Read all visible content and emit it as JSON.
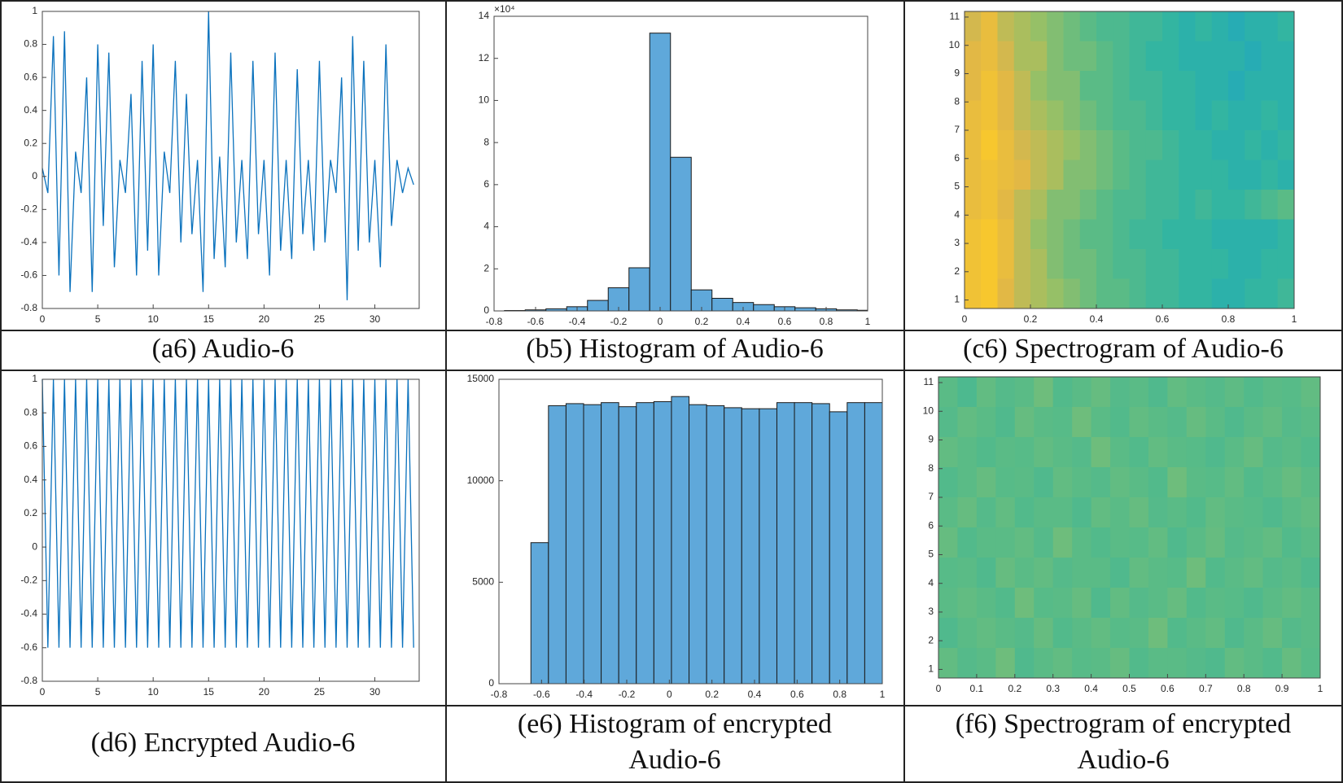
{
  "chart_data": [
    {
      "type": "line",
      "caption": "(a6) Audio-6",
      "color": "#0b72bd",
      "x": [
        0,
        0.5,
        1,
        1.5,
        2,
        2.5,
        3,
        3.5,
        4,
        4.5,
        5,
        5.5,
        6,
        6.5,
        7,
        7.5,
        8,
        8.5,
        9,
        9.5,
        10,
        10.5,
        11,
        11.5,
        12,
        12.5,
        13,
        13.5,
        14,
        14.5,
        15,
        15.5,
        16,
        16.5,
        17,
        17.5,
        18,
        18.5,
        19,
        19.5,
        20,
        20.5,
        21,
        21.5,
        22,
        22.5,
        23,
        23.5,
        24,
        24.5,
        25,
        25.5,
        26,
        26.5,
        27,
        27.5,
        28,
        28.5,
        29,
        29.5,
        30,
        30.5,
        31,
        31.5,
        32,
        32.5,
        33,
        33.5
      ],
      "values": [
        0.05,
        -0.1,
        0.85,
        -0.6,
        0.88,
        -0.7,
        0.15,
        -0.1,
        0.6,
        -0.7,
        0.8,
        -0.3,
        0.75,
        -0.55,
        0.1,
        -0.1,
        0.5,
        -0.6,
        0.7,
        -0.45,
        0.8,
        -0.6,
        0.15,
        -0.1,
        0.7,
        -0.4,
        0.5,
        -0.35,
        0.1,
        -0.7,
        1.0,
        -0.5,
        0.12,
        -0.55,
        0.75,
        -0.4,
        0.1,
        -0.5,
        0.7,
        -0.35,
        0.1,
        -0.6,
        0.75,
        -0.45,
        0.1,
        -0.5,
        0.65,
        -0.35,
        0.1,
        -0.45,
        0.7,
        -0.4,
        0.1,
        -0.1,
        0.6,
        -0.75,
        0.85,
        -0.45,
        0.7,
        -0.4,
        0.1,
        -0.55,
        0.8,
        -0.3,
        0.1,
        -0.1,
        0.05,
        -0.05
      ],
      "xlim": [
        0,
        34
      ],
      "xticks": [
        0,
        5,
        10,
        15,
        20,
        25,
        30
      ],
      "ylim": [
        -0.8,
        1
      ],
      "yticks": [
        -0.8,
        -0.6,
        -0.4,
        -0.2,
        0,
        0.2,
        0.4,
        0.6,
        0.8,
        1
      ]
    },
    {
      "type": "histogram",
      "caption": "(b5) Histogram of Audio-6",
      "color": "#5fa8da",
      "y_multiplier": "×10⁴",
      "bins": [
        -0.75,
        -0.65,
        -0.55,
        -0.45,
        -0.35,
        -0.25,
        -0.15,
        -0.05,
        0.05,
        0.15,
        0.25,
        0.35,
        0.45,
        0.55,
        0.65,
        0.75,
        0.85,
        0.95,
        1.0
      ],
      "values": [
        0.02,
        0.05,
        0.1,
        0.2,
        0.5,
        1.1,
        2.05,
        13.2,
        7.3,
        1.0,
        0.6,
        0.4,
        0.3,
        0.2,
        0.15,
        0.1,
        0.05,
        0.03
      ],
      "xlim": [
        -0.8,
        1
      ],
      "xticks": [
        -0.8,
        -0.6,
        -0.4,
        -0.2,
        0,
        0.2,
        0.4,
        0.6,
        0.8,
        1
      ],
      "ylim": [
        0,
        14
      ],
      "yticks": [
        0,
        2,
        4,
        6,
        8,
        10,
        12,
        14
      ]
    },
    {
      "type": "heatmap",
      "caption": "(c6) Spectrogram of Audio-6",
      "colormap": [
        "#2386d8",
        "#1fa4c4",
        "#2fb4a4",
        "#5abb86",
        "#9dc064",
        "#e0b648",
        "#f7c72e"
      ],
      "z": [
        [
          0.8,
          0.9,
          0.75,
          0.7,
          0.65,
          0.6,
          0.55,
          0.5,
          0.45,
          0.45,
          0.4,
          0.4,
          0.35,
          0.3,
          0.35,
          0.3,
          0.25,
          0.3,
          0.3,
          0.35
        ],
        [
          0.85,
          0.9,
          0.8,
          0.7,
          0.7,
          0.6,
          0.55,
          0.55,
          0.5,
          0.45,
          0.4,
          0.35,
          0.35,
          0.3,
          0.3,
          0.3,
          0.3,
          0.25,
          0.3,
          0.3
        ],
        [
          0.85,
          0.95,
          0.85,
          0.75,
          0.65,
          0.6,
          0.6,
          0.5,
          0.5,
          0.45,
          0.4,
          0.4,
          0.35,
          0.35,
          0.3,
          0.3,
          0.25,
          0.3,
          0.3,
          0.3
        ],
        [
          0.9,
          0.95,
          0.85,
          0.75,
          0.7,
          0.65,
          0.6,
          0.55,
          0.5,
          0.45,
          0.45,
          0.4,
          0.35,
          0.35,
          0.3,
          0.35,
          0.3,
          0.3,
          0.35,
          0.3
        ],
        [
          0.9,
          1.0,
          0.9,
          0.8,
          0.75,
          0.7,
          0.65,
          0.6,
          0.55,
          0.5,
          0.45,
          0.45,
          0.4,
          0.35,
          0.35,
          0.3,
          0.3,
          0.35,
          0.3,
          0.35
        ],
        [
          0.9,
          0.95,
          0.9,
          0.85,
          0.75,
          0.7,
          0.6,
          0.6,
          0.55,
          0.5,
          0.45,
          0.4,
          0.4,
          0.35,
          0.35,
          0.35,
          0.3,
          0.3,
          0.35,
          0.3
        ],
        [
          0.9,
          0.95,
          0.85,
          0.75,
          0.7,
          0.6,
          0.6,
          0.55,
          0.5,
          0.45,
          0.45,
          0.4,
          0.4,
          0.35,
          0.4,
          0.35,
          0.35,
          0.4,
          0.45,
          0.5
        ],
        [
          0.95,
          1.0,
          0.9,
          0.75,
          0.65,
          0.6,
          0.55,
          0.5,
          0.5,
          0.45,
          0.4,
          0.4,
          0.35,
          0.35,
          0.35,
          0.3,
          0.3,
          0.3,
          0.3,
          0.35
        ],
        [
          0.95,
          1.0,
          0.9,
          0.75,
          0.7,
          0.6,
          0.55,
          0.55,
          0.5,
          0.45,
          0.45,
          0.4,
          0.4,
          0.35,
          0.35,
          0.35,
          0.3,
          0.3,
          0.35,
          0.35
        ],
        [
          0.95,
          1.0,
          0.85,
          0.75,
          0.7,
          0.65,
          0.6,
          0.55,
          0.5,
          0.5,
          0.45,
          0.4,
          0.4,
          0.35,
          0.35,
          0.3,
          0.3,
          0.35,
          0.35,
          0.4
        ]
      ],
      "xlim": [
        0,
        1
      ],
      "xticks": [
        0,
        0.2,
        0.4,
        0.6,
        0.8,
        1
      ],
      "ylim": [
        0.7,
        11.2
      ],
      "yticks": [
        1,
        2,
        3,
        4,
        5,
        6,
        7,
        8,
        9,
        10,
        11
      ]
    },
    {
      "type": "line",
      "caption": "(d6) Encrypted Audio-6",
      "color": "#0b72bd",
      "x": [
        0,
        0.5,
        1,
        1.5,
        2,
        2.5,
        3,
        3.5,
        4,
        4.5,
        5,
        5.5,
        6,
        6.5,
        7,
        7.5,
        8,
        8.5,
        9,
        9.5,
        10,
        10.5,
        11,
        11.5,
        12,
        12.5,
        13,
        13.5,
        14,
        14.5,
        15,
        15.5,
        16,
        16.5,
        17,
        17.5,
        18,
        18.5,
        19,
        19.5,
        20,
        20.5,
        21,
        21.5,
        22,
        22.5,
        23,
        23.5,
        24,
        24.5,
        25,
        25.5,
        26,
        26.5,
        27,
        27.5,
        28,
        28.5,
        29,
        29.5,
        30,
        30.5,
        31,
        31.5,
        32,
        32.5,
        33,
        33.5
      ],
      "values": [
        1,
        -0.6,
        1,
        -0.6,
        1,
        -0.6,
        1,
        -0.6,
        1,
        -0.6,
        1,
        -0.6,
        1,
        -0.6,
        1,
        -0.6,
        1,
        -0.6,
        1,
        -0.6,
        1,
        -0.6,
        1,
        -0.6,
        1,
        -0.6,
        1,
        -0.6,
        1,
        -0.6,
        1,
        -0.6,
        1,
        -0.6,
        1,
        -0.6,
        1,
        -0.6,
        1,
        -0.6,
        1,
        -0.6,
        1,
        -0.6,
        1,
        -0.6,
        1,
        -0.6,
        1,
        -0.6,
        1,
        -0.6,
        1,
        -0.6,
        1,
        -0.6,
        1,
        -0.6,
        1,
        -0.6,
        1,
        -0.6,
        1,
        -0.6,
        1,
        -0.6,
        1,
        -0.6
      ],
      "xlim": [
        0,
        34
      ],
      "xticks": [
        0,
        5,
        10,
        15,
        20,
        25,
        30
      ],
      "ylim": [
        -0.8,
        1
      ],
      "yticks": [
        -0.8,
        -0.6,
        -0.4,
        -0.2,
        0,
        0.2,
        0.4,
        0.6,
        0.8,
        1
      ]
    },
    {
      "type": "histogram",
      "caption": [
        "(e6) Histogram of encrypted",
        "Audio-6"
      ],
      "color": "#5fa8da",
      "bins": [
        -0.65,
        -0.5675,
        -0.485,
        -0.4025,
        -0.32,
        -0.2375,
        -0.155,
        -0.0725,
        0.01,
        0.0925,
        0.175,
        0.2575,
        0.34,
        0.4225,
        0.505,
        0.5875,
        0.67,
        0.7525,
        0.835,
        0.9175,
        1.0
      ],
      "values": [
        6950,
        13700,
        13800,
        13750,
        13850,
        13650,
        13850,
        13900,
        14150,
        13750,
        13700,
        13600,
        13550,
        13550,
        13850,
        13850,
        13800,
        13400,
        13850,
        13850
      ],
      "xlim": [
        -0.8,
        1
      ],
      "xticks": [
        -0.8,
        -0.6,
        -0.4,
        -0.2,
        0,
        0.2,
        0.4,
        0.6,
        0.8,
        1
      ],
      "ylim": [
        0,
        15000
      ],
      "yticks": [
        0,
        5000,
        10000,
        15000
      ]
    },
    {
      "type": "heatmap",
      "caption": [
        "(f6) Spectrogram of encrypted",
        "Audio-6"
      ],
      "colormap": [
        "#2386d8",
        "#1fa4c4",
        "#2fb4a4",
        "#5abb86",
        "#9dc064",
        "#e0b648",
        "#f7c72e"
      ],
      "z": [
        [
          0.5,
          0.45,
          0.52,
          0.48,
          0.5,
          0.55,
          0.47,
          0.5,
          0.53,
          0.48,
          0.5,
          0.46,
          0.52,
          0.5,
          0.48,
          0.51,
          0.47,
          0.5,
          0.49,
          0.52
        ],
        [
          0.48,
          0.52,
          0.5,
          0.46,
          0.53,
          0.5,
          0.49,
          0.55,
          0.5,
          0.47,
          0.52,
          0.5,
          0.48,
          0.53,
          0.5,
          0.46,
          0.5,
          0.52,
          0.48,
          0.5
        ],
        [
          0.52,
          0.5,
          0.47,
          0.5,
          0.49,
          0.52,
          0.5,
          0.48,
          0.55,
          0.5,
          0.47,
          0.52,
          0.5,
          0.49,
          0.46,
          0.5,
          0.53,
          0.48,
          0.5,
          0.47
        ],
        [
          0.47,
          0.5,
          0.53,
          0.49,
          0.5,
          0.46,
          0.52,
          0.5,
          0.48,
          0.52,
          0.5,
          0.47,
          0.55,
          0.5,
          0.49,
          0.52,
          0.47,
          0.5,
          0.53,
          0.5
        ],
        [
          0.5,
          0.53,
          0.48,
          0.52,
          0.47,
          0.5,
          0.5,
          0.46,
          0.52,
          0.5,
          0.53,
          0.48,
          0.5,
          0.47,
          0.52,
          0.5,
          0.49,
          0.46,
          0.5,
          0.52
        ],
        [
          0.53,
          0.47,
          0.5,
          0.5,
          0.52,
          0.48,
          0.55,
          0.5,
          0.47,
          0.5,
          0.49,
          0.52,
          0.46,
          0.5,
          0.53,
          0.48,
          0.5,
          0.52,
          0.47,
          0.5
        ],
        [
          0.49,
          0.5,
          0.46,
          0.53,
          0.5,
          0.52,
          0.48,
          0.5,
          0.5,
          0.46,
          0.52,
          0.5,
          0.49,
          0.55,
          0.47,
          0.5,
          0.52,
          0.48,
          0.5,
          0.46
        ],
        [
          0.5,
          0.52,
          0.5,
          0.47,
          0.55,
          0.49,
          0.5,
          0.53,
          0.46,
          0.52,
          0.48,
          0.5,
          0.53,
          0.47,
          0.5,
          0.49,
          0.46,
          0.5,
          0.52,
          0.5
        ],
        [
          0.46,
          0.5,
          0.52,
          0.5,
          0.48,
          0.53,
          0.47,
          0.5,
          0.52,
          0.49,
          0.5,
          0.55,
          0.47,
          0.5,
          0.52,
          0.46,
          0.5,
          0.53,
          0.48,
          0.5
        ],
        [
          0.52,
          0.48,
          0.5,
          0.55,
          0.46,
          0.5,
          0.52,
          0.49,
          0.5,
          0.53,
          0.47,
          0.5,
          0.5,
          0.48,
          0.46,
          0.52,
          0.5,
          0.47,
          0.53,
          0.49
        ]
      ],
      "xlim": [
        0,
        1
      ],
      "xticks": [
        0,
        0.1,
        0.2,
        0.3,
        0.4,
        0.5,
        0.6,
        0.7,
        0.8,
        0.9,
        1
      ],
      "ylim": [
        0.7,
        11.2
      ],
      "yticks": [
        1,
        2,
        3,
        4,
        5,
        6,
        7,
        8,
        9,
        10,
        11
      ]
    }
  ]
}
